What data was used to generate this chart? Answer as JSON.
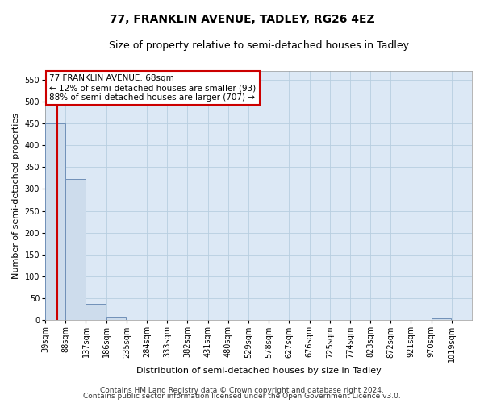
{
  "title": "77, FRANKLIN AVENUE, TADLEY, RG26 4EZ",
  "subtitle": "Size of property relative to semi-detached houses in Tadley",
  "xlabel": "Distribution of semi-detached houses by size in Tadley",
  "ylabel": "Number of semi-detached properties",
  "footer_line1": "Contains HM Land Registry data © Crown copyright and database right 2024.",
  "footer_line2": "Contains public sector information licensed under the Open Government Licence v3.0.",
  "property_label": "77 FRANKLIN AVENUE: 68sqm",
  "pct_smaller": 12,
  "pct_larger": 88,
  "count_smaller": 93,
  "count_larger": 707,
  "bin_labels": [
    "39sqm",
    "88sqm",
    "137sqm",
    "186sqm",
    "235sqm",
    "284sqm",
    "333sqm",
    "382sqm",
    "431sqm",
    "480sqm",
    "529sqm",
    "578sqm",
    "627sqm",
    "676sqm",
    "725sqm",
    "774sqm",
    "823sqm",
    "872sqm",
    "921sqm",
    "970sqm",
    "1019sqm"
  ],
  "bin_starts": [
    39,
    88,
    137,
    186,
    235,
    284,
    333,
    382,
    431,
    480,
    529,
    578,
    627,
    676,
    725,
    774,
    823,
    872,
    921,
    970,
    1019
  ],
  "bar_values": [
    450,
    323,
    37,
    7,
    0,
    0,
    0,
    0,
    0,
    0,
    0,
    0,
    0,
    0,
    0,
    0,
    0,
    0,
    0,
    5,
    0
  ],
  "bar_color": "#cddcec",
  "bar_edge_color": "#7090b8",
  "red_line_x": 68,
  "ylim": [
    0,
    570
  ],
  "yticks": [
    0,
    50,
    100,
    150,
    200,
    250,
    300,
    350,
    400,
    450,
    500,
    550
  ],
  "bg_color": "#ffffff",
  "plot_bg_color": "#dce8f5",
  "grid_color": "#b8cee0",
  "annotation_box_color": "#ffffff",
  "annotation_box_edge": "#cc0000",
  "red_line_color": "#cc0000",
  "title_fontsize": 10,
  "subtitle_fontsize": 9,
  "axis_label_fontsize": 8,
  "tick_fontsize": 7,
  "annotation_fontsize": 7.5,
  "footer_fontsize": 6.5
}
